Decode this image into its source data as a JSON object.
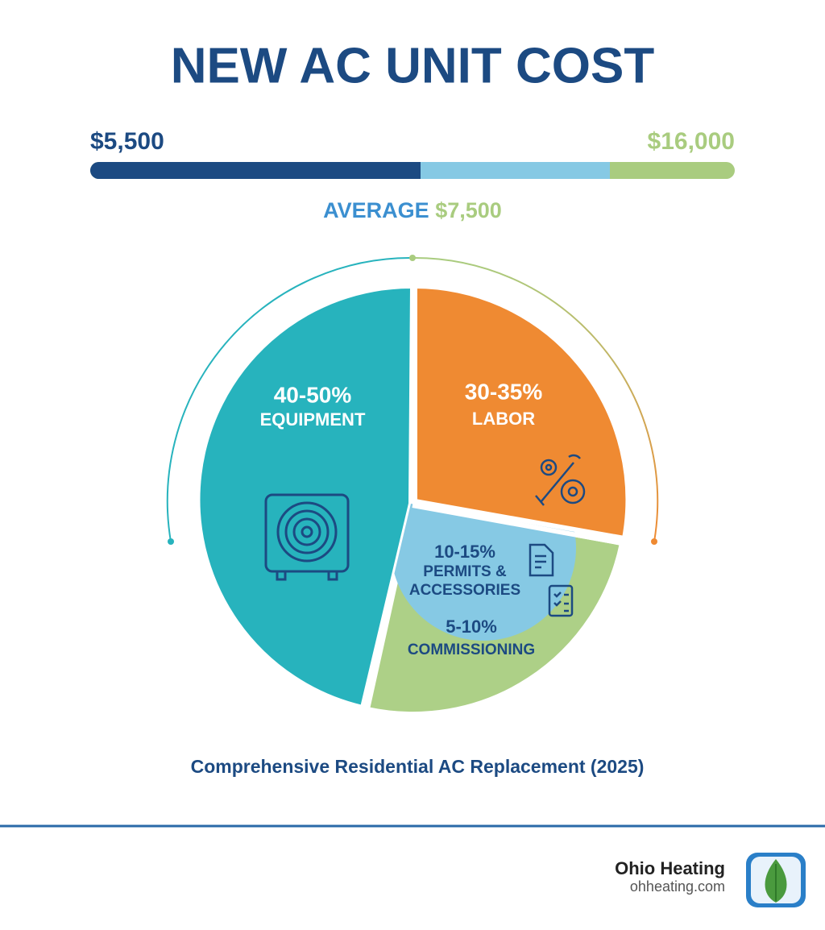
{
  "header": {
    "title": "NEW AC UNIT COST"
  },
  "range": {
    "low": "$5,500",
    "high": "$16,000",
    "average_label": "AVERAGE",
    "average_value": "$7,500"
  },
  "segments": [
    {
      "percent": "40-50%",
      "label_lines": [
        "EQUIPMENT"
      ]
    },
    {
      "percent": "30-35%",
      "label_lines": [
        "LABOR"
      ]
    },
    {
      "percent": "10-15%",
      "label_lines": [
        "PERMITS &",
        "ACCESSORIES"
      ]
    },
    {
      "percent": "5-10%",
      "label_lines": [
        "COMMISSIONING"
      ]
    }
  ],
  "caption": "Comprehensive Residential AC Replacement (2025)",
  "footer": {
    "brand": "Ohio Heating",
    "url": "ohheating.com"
  }
}
